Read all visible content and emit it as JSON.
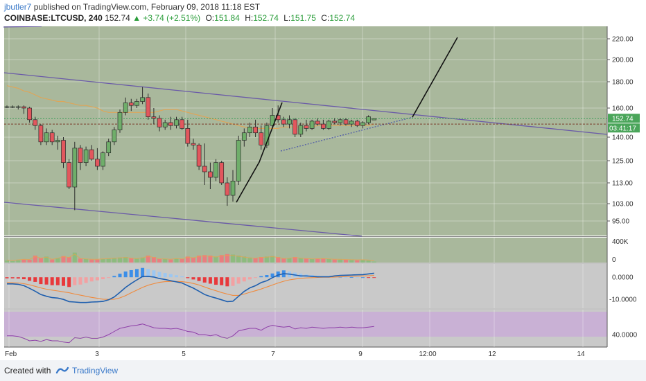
{
  "header": {
    "author": "jbutler7",
    "published": "published on TradingView.com, February 09, 2018 11:18 EST",
    "symbol": "COINBASE:LTCUSD, 240",
    "last": "152.74",
    "change": "▲ +3.74 (+2.51%)",
    "o_label": "O:",
    "o_value": "151.84",
    "h_label": "H:",
    "h_value": "152.74",
    "l_label": "L:",
    "l_value": "151.75",
    "c_label": "C:",
    "c_value": "152.74"
  },
  "footer": {
    "created_with": "Created with",
    "brand": "TradingView"
  },
  "colors": {
    "background": "#a9b89c",
    "up": "#6fae6a",
    "down": "#e2575d",
    "trendline": "#6a5aa8",
    "ma": "#e8a24e",
    "macd": "#1f5fae",
    "signal": "#f08a3c",
    "rsi": "#8e3fa8",
    "rsi_band": "#c8a8d8"
  },
  "chart_data": {
    "type": "candlestick",
    "price_axis_ticks": [
      "220.00",
      "200.00",
      "180.00",
      "160.00",
      "140.00",
      "125.00",
      "113.00",
      "103.00",
      "95.00"
    ],
    "price_axis_values": [
      220,
      200,
      180,
      160,
      140,
      125,
      113,
      103,
      95
    ],
    "last_price_label": "152.74",
    "countdown_label": "03:41:17",
    "volume_ticks": [
      "400K",
      "0"
    ],
    "macd_ticks": [
      "0.0000",
      "-10.0000"
    ],
    "rsi_ticks": [
      "40.0000"
    ],
    "x_ticks": [
      "Feb",
      "3",
      "5",
      "7",
      "9",
      "12:00",
      "12",
      "14"
    ],
    "candles": [
      {
        "o": 161,
        "h": 162,
        "l": 160,
        "c": 161
      },
      {
        "o": 161,
        "h": 162,
        "l": 160,
        "c": 161
      },
      {
        "o": 161,
        "h": 162,
        "l": 159,
        "c": 161
      },
      {
        "o": 161,
        "h": 162,
        "l": 156,
        "c": 160
      },
      {
        "o": 160,
        "h": 161,
        "l": 150,
        "c": 152
      },
      {
        "o": 152,
        "h": 154,
        "l": 145,
        "c": 148
      },
      {
        "o": 148,
        "h": 149,
        "l": 135,
        "c": 137
      },
      {
        "o": 137,
        "h": 146,
        "l": 135,
        "c": 143
      },
      {
        "o": 143,
        "h": 145,
        "l": 135,
        "c": 137
      },
      {
        "o": 137,
        "h": 141,
        "l": 132,
        "c": 138
      },
      {
        "o": 138,
        "h": 140,
        "l": 121,
        "c": 124
      },
      {
        "o": 124,
        "h": 126,
        "l": 110,
        "c": 111
      },
      {
        "o": 111,
        "h": 137,
        "l": 100,
        "c": 133
      },
      {
        "o": 133,
        "h": 135,
        "l": 120,
        "c": 124
      },
      {
        "o": 124,
        "h": 134,
        "l": 122,
        "c": 132
      },
      {
        "o": 132,
        "h": 135,
        "l": 125,
        "c": 126
      },
      {
        "o": 126,
        "h": 133,
        "l": 120,
        "c": 122
      },
      {
        "o": 122,
        "h": 131,
        "l": 120,
        "c": 130
      },
      {
        "o": 130,
        "h": 139,
        "l": 128,
        "c": 137
      },
      {
        "o": 137,
        "h": 147,
        "l": 135,
        "c": 145
      },
      {
        "o": 145,
        "h": 159,
        "l": 143,
        "c": 157
      },
      {
        "o": 157,
        "h": 168,
        "l": 155,
        "c": 164
      },
      {
        "o": 164,
        "h": 167,
        "l": 158,
        "c": 162
      },
      {
        "o": 162,
        "h": 167,
        "l": 160,
        "c": 165
      },
      {
        "o": 165,
        "h": 176,
        "l": 163,
        "c": 168
      },
      {
        "o": 168,
        "h": 171,
        "l": 152,
        "c": 154
      },
      {
        "o": 154,
        "h": 160,
        "l": 149,
        "c": 153
      },
      {
        "o": 153,
        "h": 155,
        "l": 144,
        "c": 147
      },
      {
        "o": 147,
        "h": 152,
        "l": 145,
        "c": 150
      },
      {
        "o": 150,
        "h": 154,
        "l": 145,
        "c": 148
      },
      {
        "o": 148,
        "h": 154,
        "l": 146,
        "c": 152
      },
      {
        "o": 152,
        "h": 154,
        "l": 145,
        "c": 146
      },
      {
        "o": 146,
        "h": 152,
        "l": 134,
        "c": 136
      },
      {
        "o": 136,
        "h": 139,
        "l": 132,
        "c": 135
      },
      {
        "o": 135,
        "h": 136,
        "l": 120,
        "c": 122
      },
      {
        "o": 122,
        "h": 136,
        "l": 112,
        "c": 119
      },
      {
        "o": 119,
        "h": 124,
        "l": 110,
        "c": 116
      },
      {
        "o": 116,
        "h": 126,
        "l": 114,
        "c": 124
      },
      {
        "o": 124,
        "h": 125,
        "l": 112,
        "c": 113
      },
      {
        "o": 113,
        "h": 116,
        "l": 102,
        "c": 107
      },
      {
        "o": 107,
        "h": 120,
        "l": 104,
        "c": 114
      },
      {
        "o": 114,
        "h": 141,
        "l": 112,
        "c": 138
      },
      {
        "o": 138,
        "h": 146,
        "l": 134,
        "c": 143
      },
      {
        "o": 143,
        "h": 150,
        "l": 140,
        "c": 147
      },
      {
        "o": 147,
        "h": 152,
        "l": 140,
        "c": 143
      },
      {
        "o": 143,
        "h": 148,
        "l": 132,
        "c": 135
      },
      {
        "o": 135,
        "h": 150,
        "l": 133,
        "c": 148
      },
      {
        "o": 148,
        "h": 160,
        "l": 146,
        "c": 155
      },
      {
        "o": 155,
        "h": 162,
        "l": 150,
        "c": 152
      },
      {
        "o": 152,
        "h": 154,
        "l": 147,
        "c": 149
      },
      {
        "o": 149,
        "h": 155,
        "l": 146,
        "c": 152
      },
      {
        "o": 152,
        "h": 153,
        "l": 140,
        "c": 142
      },
      {
        "o": 142,
        "h": 150,
        "l": 140,
        "c": 148
      },
      {
        "o": 148,
        "h": 152,
        "l": 144,
        "c": 146
      },
      {
        "o": 146,
        "h": 152,
        "l": 145,
        "c": 151
      },
      {
        "o": 151,
        "h": 153,
        "l": 148,
        "c": 149
      },
      {
        "o": 149,
        "h": 152,
        "l": 145,
        "c": 146
      },
      {
        "o": 146,
        "h": 152,
        "l": 145,
        "c": 151
      },
      {
        "o": 151,
        "h": 153,
        "l": 149,
        "c": 150
      },
      {
        "o": 150,
        "h": 153,
        "l": 148,
        "c": 152
      },
      {
        "o": 152,
        "h": 153,
        "l": 148,
        "c": 149
      },
      {
        "o": 149,
        "h": 152,
        "l": 147,
        "c": 151
      },
      {
        "o": 151,
        "h": 152,
        "l": 147,
        "c": 148
      },
      {
        "o": 148,
        "h": 151,
        "l": 146,
        "c": 150
      },
      {
        "o": 150,
        "h": 155,
        "l": 149,
        "c": 154
      },
      {
        "o": 151.84,
        "h": 152.74,
        "l": 151.75,
        "c": 152.74
      }
    ],
    "volume_ylim": [
      0,
      500
    ],
    "volume": [
      40,
      30,
      45,
      60,
      55,
      140,
      90,
      120,
      60,
      90,
      130,
      110,
      200,
      80,
      70,
      60,
      60,
      70,
      80,
      90,
      100,
      110,
      90,
      80,
      100,
      140,
      110,
      70,
      70,
      60,
      80,
      70,
      120,
      100,
      140,
      150,
      140,
      120,
      150,
      170,
      160,
      140,
      120,
      100,
      90,
      110,
      120,
      130,
      110,
      80,
      90,
      110,
      90,
      80,
      70,
      75,
      80,
      70,
      60,
      60,
      55,
      50,
      45,
      50,
      40,
      20
    ],
    "macd_ylim": [
      -14,
      6
    ],
    "macd_hist": [
      -0.5,
      -0.5,
      -0.6,
      -0.9,
      -1.6,
      -2.1,
      -3.1,
      -3.3,
      -3.6,
      -3.6,
      -3.9,
      -4.4,
      -3.6,
      -3.3,
      -2.6,
      -1.9,
      -1.4,
      -0.9,
      -0.3,
      0.6,
      1.6,
      2.6,
      3.2,
      3.7,
      4.2,
      3.7,
      3.1,
      2.4,
      1.9,
      1.4,
      0.9,
      0.4,
      -0.4,
      -1.0,
      -1.7,
      -2.4,
      -2.9,
      -3.4,
      -3.6,
      -4.1,
      -3.9,
      -2.9,
      -1.9,
      -1.0,
      -0.3,
      0.5,
      1.0,
      1.7,
      2.6,
      3.1,
      2.6,
      2.1,
      1.6,
      1.2,
      1.0,
      0.7,
      0.5,
      0.3,
      0.2,
      0.2,
      0.1,
      0.1,
      0.0,
      0.0,
      -0.1,
      -0.2
    ],
    "macd_line": [
      -3,
      -3,
      -3.2,
      -3.8,
      -5,
      -6.3,
      -7.8,
      -8.6,
      -9.2,
      -9.4,
      -10.0,
      -11.0,
      -11.2,
      -11.4,
      -11.4,
      -11.2,
      -11.1,
      -10.9,
      -10.2,
      -8.9,
      -6.8,
      -4.6,
      -2.8,
      -1.2,
      0.3,
      0.4,
      0.1,
      -0.6,
      -1.0,
      -1.6,
      -2.1,
      -2.6,
      -3.8,
      -4.9,
      -6.3,
      -7.8,
      -8.7,
      -9.4,
      -10.2,
      -11.0,
      -10.8,
      -8.6,
      -6.4,
      -4.8,
      -3.8,
      -2.4,
      -1.6,
      -0.2,
      1.0,
      1.6,
      1.4,
      1.0,
      0.6,
      0.6,
      0.4,
      0.2,
      0.2,
      0.2,
      0.6,
      0.8,
      0.9,
      1.0,
      1.1,
      1.2,
      1.5,
      1.8
    ],
    "macd_signal": [
      -2.4,
      -2.5,
      -2.6,
      -2.9,
      -3.4,
      -4.1,
      -4.8,
      -5.4,
      -5.8,
      -6.2,
      -6.6,
      -7.0,
      -7.6,
      -8.1,
      -8.6,
      -9.1,
      -9.5,
      -9.9,
      -10.0,
      -9.9,
      -9.3,
      -8.3,
      -7.0,
      -5.8,
      -4.6,
      -3.6,
      -2.9,
      -2.3,
      -2.0,
      -1.9,
      -1.9,
      -2.0,
      -2.3,
      -2.8,
      -3.5,
      -4.4,
      -5.3,
      -6.1,
      -6.9,
      -7.6,
      -8.2,
      -8.2,
      -7.6,
      -6.8,
      -6.1,
      -5.3,
      -4.4,
      -3.5,
      -2.6,
      -1.8,
      -1.2,
      -0.8,
      -0.5,
      -0.3,
      -0.2,
      -0.1,
      0.0,
      0.0,
      0.1,
      0.2,
      0.3,
      0.4,
      0.5,
      0.6,
      0.7,
      0.8
    ],
    "ma": [
      177,
      176,
      175,
      173,
      172,
      170,
      168,
      167,
      166,
      165,
      165,
      164,
      163,
      162,
      162,
      161,
      160,
      158,
      157,
      157,
      157,
      157,
      157,
      157,
      157,
      157,
      157,
      158,
      159,
      159,
      159,
      158,
      157,
      156,
      155,
      154,
      153,
      152,
      151,
      150,
      149,
      148,
      147,
      146,
      146,
      146,
      146,
      146,
      146,
      147,
      147,
      147,
      147,
      147,
      147,
      148,
      148,
      148,
      148,
      148,
      148,
      148,
      148,
      148,
      148,
      149
    ],
    "ma_tail": [
      158,
      157,
      156,
      155,
      154,
      153,
      152,
      151,
      150,
      149,
      148,
      147,
      146,
      145,
      145,
      145,
      145,
      145,
      146,
      146,
      147,
      147,
      148,
      148,
      149,
      149,
      150,
      150,
      151,
      151,
      151,
      151,
      151,
      151,
      151,
      151,
      151,
      151,
      151,
      151,
      150,
      149,
      148,
      147,
      146,
      145,
      145,
      146,
      147,
      148,
      149,
      149,
      150,
      150,
      150,
      150,
      151,
      151,
      151,
      151,
      151,
      151,
      151,
      151,
      151,
      151
    ],
    "rsi_ylim": [
      20,
      80
    ],
    "rsi": [
      38,
      38,
      37,
      34,
      30,
      31,
      29,
      32,
      30,
      30,
      28,
      27,
      35,
      34,
      36,
      34,
      34,
      36,
      40,
      45,
      50,
      52,
      54,
      55,
      57,
      54,
      51,
      50,
      50,
      49,
      50,
      48,
      45,
      44,
      40,
      40,
      38,
      40,
      36,
      34,
      38,
      46,
      48,
      50,
      50,
      47,
      52,
      55,
      53,
      52,
      53,
      49,
      51,
      50,
      52,
      51,
      50,
      51,
      51,
      52,
      51,
      52,
      51,
      51,
      52,
      53
    ]
  }
}
